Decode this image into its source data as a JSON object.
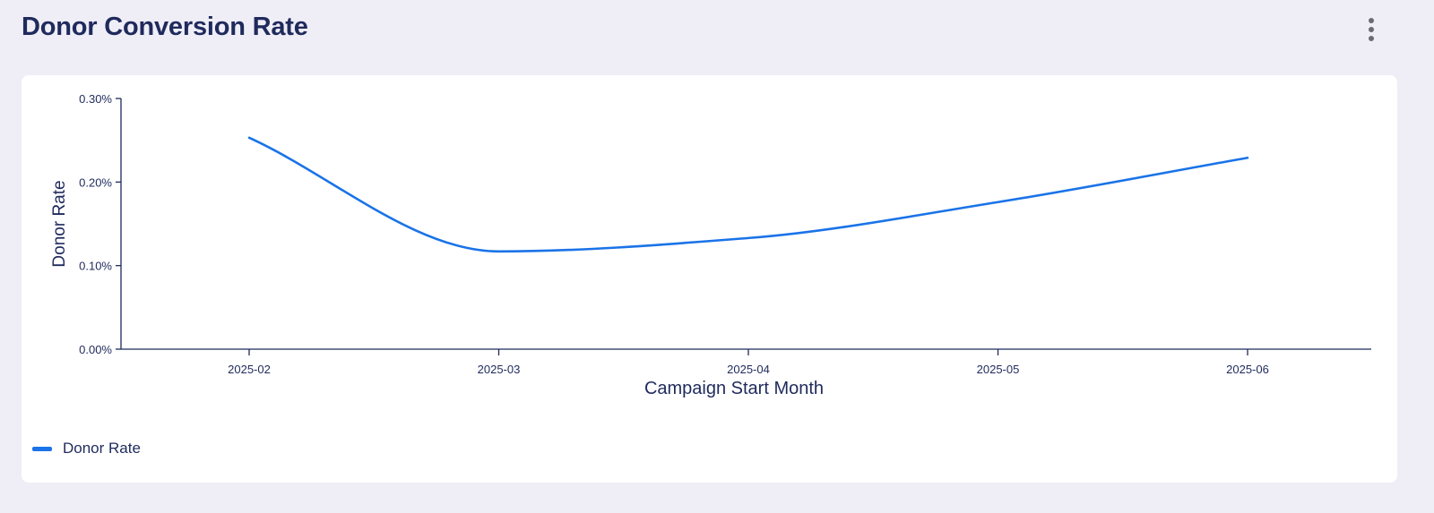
{
  "header": {
    "title": "Donor Conversion Rate",
    "menu_icon": "more-vertical-icon"
  },
  "colors": {
    "series": "#1a73e8",
    "axis": "#1f2a5c",
    "background": "#efeef7",
    "card": "#ffffff"
  },
  "chart_data": {
    "type": "line",
    "title": "",
    "xlabel": "Campaign Start Month",
    "ylabel": "Donor Rate",
    "x": [
      "2025-02",
      "2025-03",
      "2025-04",
      "2025-05",
      "2025-06"
    ],
    "series": [
      {
        "name": "Donor Rate",
        "values": [
          0.253,
          0.117,
          0.133,
          0.176,
          0.229
        ]
      }
    ],
    "ylim": [
      0,
      0.3
    ],
    "yticks": [
      0,
      0.1,
      0.2,
      0.3
    ],
    "ytick_labels": [
      "0.00%",
      "0.10%",
      "0.20%",
      "0.30%"
    ],
    "grid": false,
    "legend": "bottom-left",
    "curve": "smooth"
  }
}
